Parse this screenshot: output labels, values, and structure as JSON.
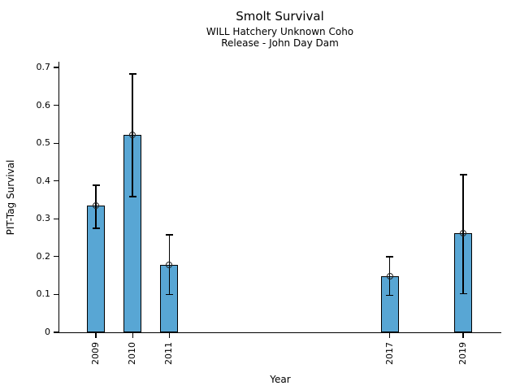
{
  "chart_data": {
    "type": "bar",
    "title": "Smolt Survival",
    "subtitle_line1": "WILL Hatchery Unknown Coho",
    "subtitle_line2": "Release - John Day Dam",
    "xlabel": "Year",
    "ylabel": "PIT-Tag Survival",
    "ylim": [
      0,
      0.7
    ],
    "xlim": [
      2008,
      2020
    ],
    "grid": false,
    "legend": "none",
    "yticks": [
      0,
      0.1,
      0.2,
      0.3,
      0.4,
      0.5,
      0.6,
      0.7
    ],
    "ytick_labels": [
      "0",
      "0.1",
      "0.2",
      "0.3",
      "0.4",
      "0.5",
      "0.6",
      "0.7"
    ],
    "categories": [
      "2009",
      "2010",
      "2011",
      "2017",
      "2019"
    ],
    "years": [
      2009,
      2010,
      2011,
      2017,
      2019
    ],
    "values": [
      0.336,
      0.522,
      0.178,
      0.148,
      0.261
    ],
    "error_low": [
      0.275,
      0.359,
      0.1,
      0.098,
      0.102
    ],
    "error_high": [
      0.389,
      0.683,
      0.258,
      0.2,
      0.417
    ],
    "marker": "open-circle",
    "bar_color": "#58a6d4",
    "bar_edge_color": "#000000",
    "error_color": "#000000",
    "text_color": "#000000",
    "background_color": "#ffffff"
  }
}
